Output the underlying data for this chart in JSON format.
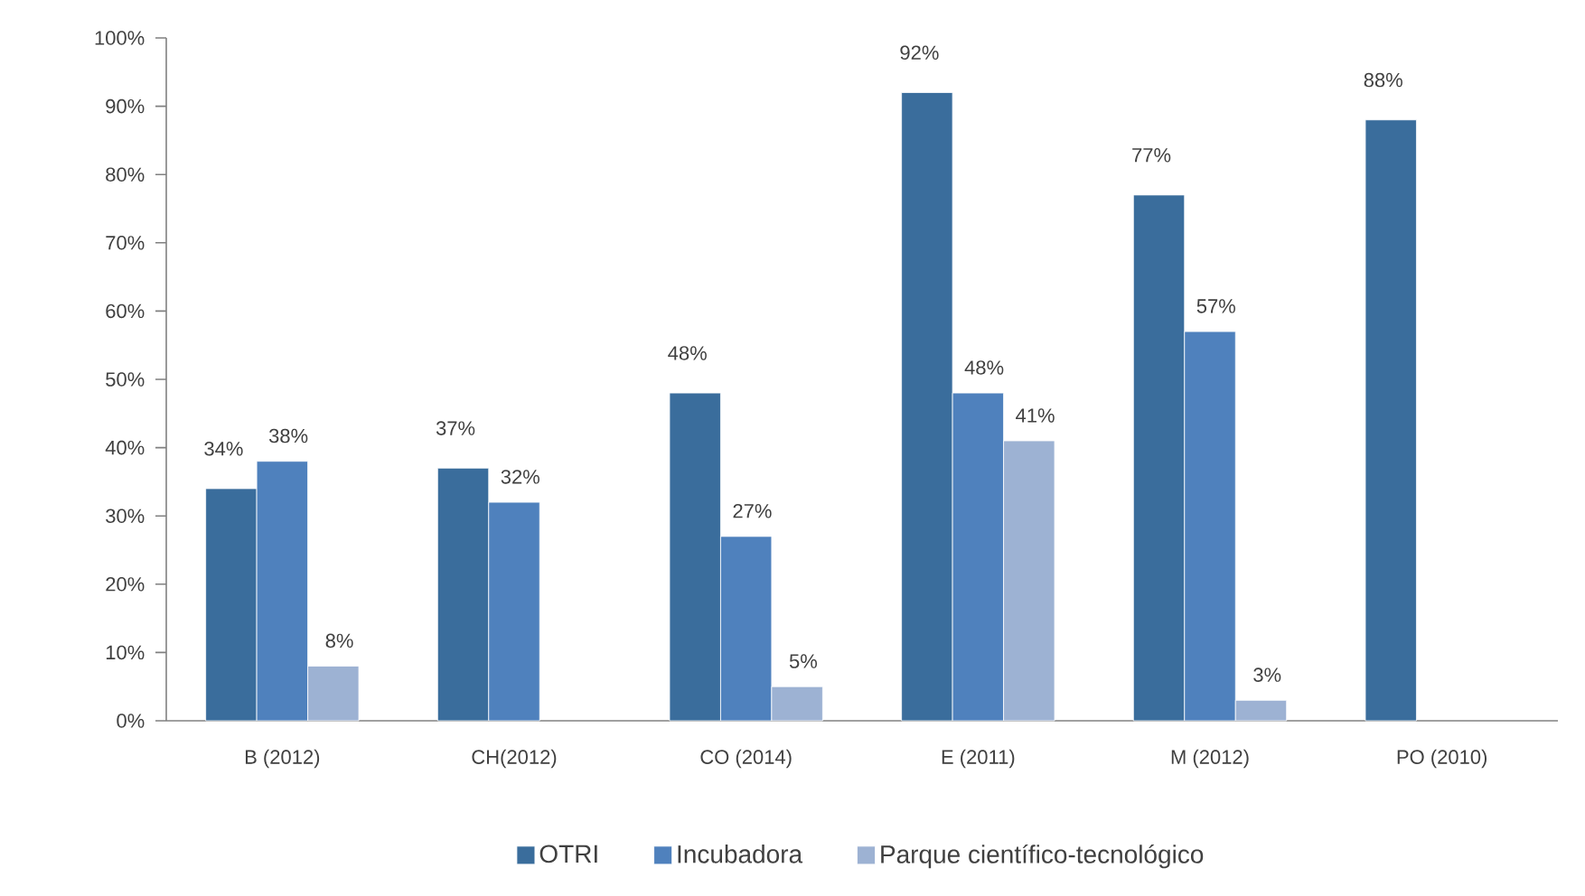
{
  "chart_data": {
    "type": "bar",
    "categories": [
      "B (2012)",
      "CH(2012)",
      "CO (2014)",
      "E (2011)",
      "M (2012)",
      "PO (2010)"
    ],
    "series": [
      {
        "name": "OTRI",
        "color": "#3a6d9c",
        "values": [
          34,
          37,
          48,
          92,
          77,
          88
        ],
        "value_labels": [
          "34%",
          "37%",
          "48%",
          "92%",
          "77%",
          "88%"
        ]
      },
      {
        "name": "Incubadora",
        "color": "#4f81bd",
        "values": [
          38,
          32,
          27,
          48,
          57,
          null
        ],
        "value_labels": [
          "38%",
          "32%",
          "27%",
          "48%",
          "57%",
          null
        ]
      },
      {
        "name": "Parque científico-tecnológico",
        "color": "#9db2d3",
        "values": [
          8,
          null,
          5,
          41,
          3,
          null
        ],
        "value_labels": [
          "8%",
          null,
          "5%",
          "41%",
          "3%",
          null
        ]
      }
    ],
    "ylim": [
      0,
      100
    ],
    "yticks": [
      {
        "value": 0,
        "label": "0%"
      },
      {
        "value": 10,
        "label": "10%"
      },
      {
        "value": 20,
        "label": "20%"
      },
      {
        "value": 30,
        "label": "30%"
      },
      {
        "value": 40,
        "label": "40%"
      },
      {
        "value": 50,
        "label": "50%"
      },
      {
        "value": 60,
        "label": "60%"
      },
      {
        "value": 70,
        "label": "70%"
      },
      {
        "value": 80,
        "label": "80%"
      },
      {
        "value": 90,
        "label": "90%"
      },
      {
        "value": 100,
        "label": "100%"
      }
    ],
    "grid": false,
    "legend": "bottom"
  }
}
